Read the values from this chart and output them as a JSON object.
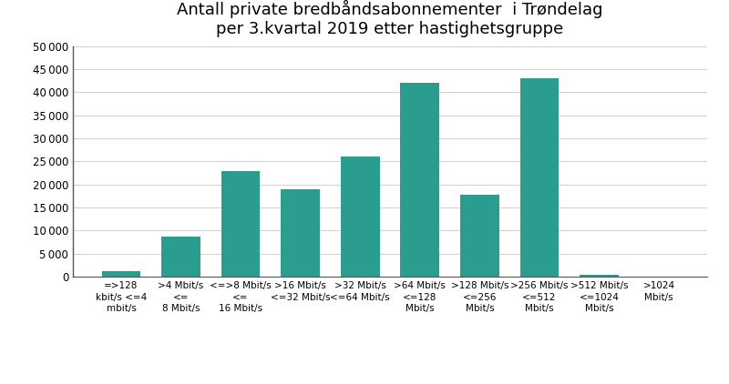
{
  "title": "Antall private bredbåndsabonnementer  i Trøndelag\nper 3.kvartal 2019 etter hastighetsgruppe",
  "categories": [
    "=>128\nkbit/s <=4\nmbit/s",
    ">4 Mbit/s\n<=\n8 Mbit/s",
    "<=>8 Mbit/s\n<=\n16 Mbit/s",
    ">16 Mbit/s\n<=32 Mbit/s",
    ">32 Mbit/s\n<=64 Mbit/s",
    ">64 Mbit/s\n<=128\nMbit/s",
    ">128 Mbit/s\n<=256\nMbit/s",
    ">256 Mbit/s\n<=512\nMbit/s",
    ">512 Mbit/s\n<=1024\nMbit/s",
    ">1024\nMbit/s"
  ],
  "values": [
    1100,
    8700,
    22800,
    19000,
    26000,
    42000,
    17700,
    43000,
    400,
    50
  ],
  "bar_color": "#2a9d8f",
  "ylim": [
    0,
    50000
  ],
  "yticks": [
    0,
    5000,
    10000,
    15000,
    20000,
    25000,
    30000,
    35000,
    40000,
    45000,
    50000
  ],
  "title_fontsize": 13,
  "tick_fontsize": 7.5,
  "ytick_fontsize": 8.5,
  "background_color": "#ffffff"
}
